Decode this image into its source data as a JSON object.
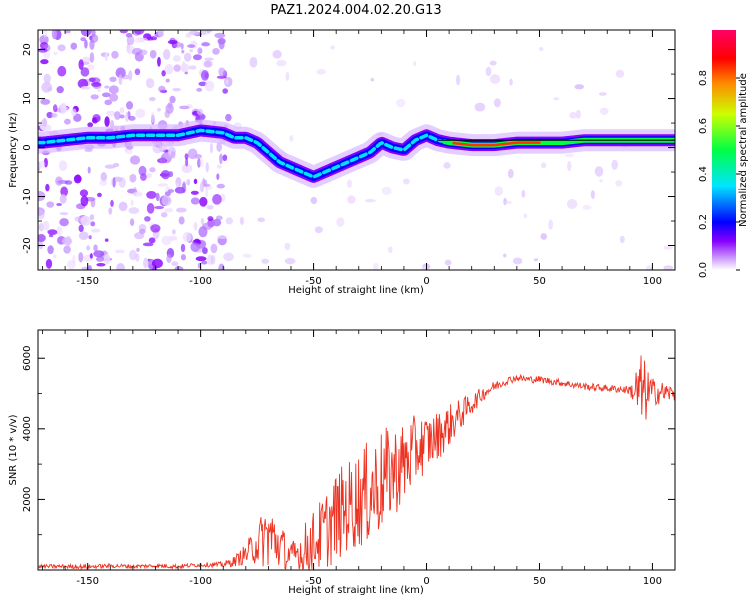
{
  "figure_title": "PAZ1.2024.004.02.20.G13",
  "chart_data": [
    {
      "type": "heatmap",
      "title": "",
      "xlabel": "Height of straight line (km)",
      "ylabel": "Frequency (Hz)",
      "xlim": [
        -172,
        110
      ],
      "ylim": [
        -25,
        24
      ],
      "x_ticks": [
        -150,
        -100,
        -50,
        0,
        50,
        100
      ],
      "y_ticks": [
        -20,
        -10,
        0,
        10,
        20
      ],
      "colorbar": {
        "label": "Normalized spectral amplitude",
        "range": [
          0,
          1
        ],
        "ticks": [
          "0.0",
          "0.2",
          "0.4",
          "0.6",
          "0.8"
        ],
        "colormap": [
          "#ffffff",
          "#cc99ff",
          "#8800ff",
          "#0000ff",
          "#00e5ff",
          "#00ff44",
          "#ccff00",
          "#ff8800",
          "#ff0000",
          "#ff0066"
        ]
      },
      "dominant_frequency_ridge": {
        "x": [
          -170,
          -160,
          -150,
          -140,
          -130,
          -120,
          -110,
          -100,
          -90,
          -85,
          -80,
          -75,
          -70,
          -65,
          -60,
          -55,
          -50,
          -45,
          -40,
          -35,
          -30,
          -25,
          -20,
          -15,
          -10,
          -5,
          0,
          5,
          10,
          20,
          30,
          40,
          50,
          60,
          70,
          80,
          90,
          100,
          110
        ],
        "y": [
          1,
          1.5,
          2,
          2,
          2.5,
          2.5,
          2.5,
          3.5,
          3,
          2,
          2,
          1,
          -1,
          -3,
          -4,
          -5,
          -6,
          -5,
          -4,
          -3,
          -2,
          -1,
          1,
          0,
          -0.5,
          1.5,
          2.5,
          1.5,
          1,
          0.5,
          0.5,
          1,
          1,
          1,
          1.5,
          1.5,
          1.5,
          1.5,
          1.5
        ]
      }
    },
    {
      "type": "line",
      "title": "",
      "xlabel": "Height of straight line (km)",
      "ylabel": "SNR (10 * v/v)",
      "xlim": [
        -172,
        110
      ],
      "ylim": [
        0,
        6800
      ],
      "x_ticks": [
        -150,
        -100,
        -50,
        0,
        50,
        100
      ],
      "y_ticks": [
        2000,
        4000,
        6000
      ],
      "series": [
        {
          "color": "#ee3322",
          "x": [
            -172,
            -160,
            -150,
            -140,
            -130,
            -120,
            -110,
            -100,
            -90,
            -85,
            -80,
            -75,
            -70,
            -65,
            -60,
            -55,
            -50,
            -45,
            -40,
            -35,
            -30,
            -25,
            -20,
            -15,
            -10,
            -5,
            0,
            5,
            10,
            15,
            20,
            25,
            30,
            35,
            40,
            45,
            50,
            60,
            70,
            80,
            90,
            95,
            100,
            110
          ],
          "values": [
            100,
            100,
            90,
            120,
            100,
            120,
            100,
            150,
            150,
            250,
            450,
            750,
            1000,
            700,
            350,
            550,
            800,
            1100,
            1500,
            1800,
            2000,
            2200,
            2500,
            2800,
            3000,
            3400,
            3600,
            3800,
            4100,
            4400,
            4700,
            5000,
            5200,
            5350,
            5450,
            5400,
            5400,
            5300,
            5200,
            5150,
            5100,
            5000,
            5050,
            5000
          ],
          "noise_amplitude": [
            60,
            60,
            60,
            60,
            60,
            60,
            60,
            60,
            80,
            150,
            300,
            600,
            1000,
            700,
            400,
            700,
            900,
            1100,
            1300,
            1300,
            1400,
            1500,
            1500,
            1300,
            1200,
            1000,
            800,
            700,
            600,
            450,
            300,
            200,
            150,
            120,
            100,
            100,
            100,
            100,
            100,
            100,
            120,
            1200,
            400,
            200
          ]
        }
      ]
    }
  ]
}
